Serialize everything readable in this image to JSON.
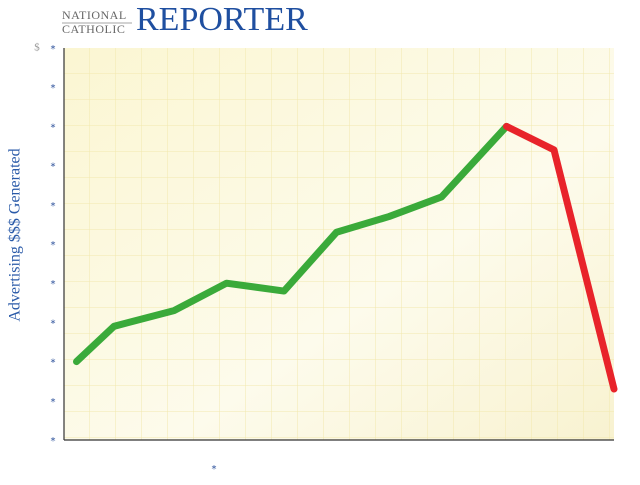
{
  "header": {
    "logo_top": "NATIONAL",
    "logo_bottom": "CATHOLIC",
    "logo_main": "REPORTER"
  },
  "chart_data": {
    "type": "line",
    "y_label": "Advertising $$$ Generated",
    "y_unit": "$",
    "x": [
      0.25,
      1,
      2.2,
      3.25,
      4.4,
      5.45,
      6.5,
      7.55,
      8.85,
      9.8,
      11
    ],
    "series": [
      {
        "color": "#3aaa3a",
        "values": [
          2.0,
          2.9,
          3.3,
          4.0,
          3.8,
          5.3,
          5.7,
          6.2,
          8.0,
          null,
          null
        ]
      },
      {
        "color": "#e8232a",
        "values": [
          null,
          null,
          null,
          null,
          null,
          null,
          null,
          null,
          8.0,
          7.4,
          1.3
        ]
      }
    ],
    "xlim": [
      0,
      11
    ],
    "xticks": [
      {
        "value": 3,
        "label": "*"
      }
    ],
    "ylim": [
      0,
      10
    ],
    "yticks": [
      {
        "value": 0,
        "label": "*"
      },
      {
        "value": 1,
        "label": "*"
      },
      {
        "value": 2,
        "label": "*"
      },
      {
        "value": 3,
        "label": "*"
      },
      {
        "value": 4,
        "label": "*"
      },
      {
        "value": 5,
        "label": "*"
      },
      {
        "value": 6,
        "label": "*"
      },
      {
        "value": 7,
        "label": "*"
      },
      {
        "value": 8,
        "label": "*"
      },
      {
        "value": 9,
        "label": "*"
      },
      {
        "value": 10,
        "label": "*"
      }
    ]
  }
}
